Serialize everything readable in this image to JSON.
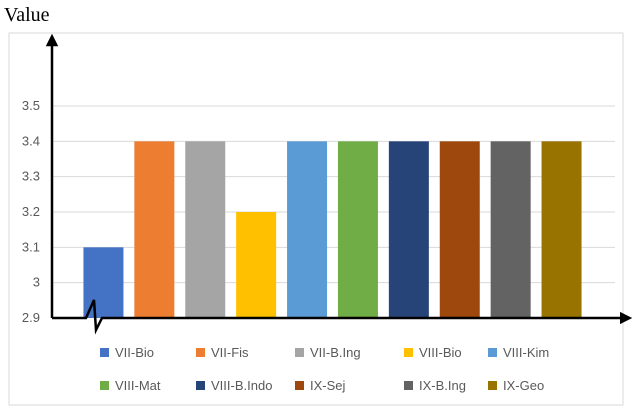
{
  "chart_data": {
    "type": "bar",
    "title": "",
    "ylabel": "Value",
    "xlabel": "",
    "ylim": [
      2.9,
      3.5
    ],
    "yticks": [
      "2.9",
      "3",
      "3.1",
      "3.2",
      "3.3",
      "3.4",
      "3.5"
    ],
    "grid": true,
    "legend_position": "bottom",
    "categories": [
      "VII-Bio",
      "VII-Fis",
      "VII-B.Ing",
      "VIII-Bio",
      "VIII-Kim",
      "VIII-Mat",
      "VIII-B.Indo",
      "IX-Sej",
      "IX-B.Ing",
      "IX-Geo"
    ],
    "values": [
      3.1,
      3.4,
      3.4,
      3.2,
      3.4,
      3.4,
      3.4,
      3.4,
      3.4,
      3.4
    ],
    "colors": [
      "#4472C4",
      "#ED7D31",
      "#A5A5A5",
      "#FFC000",
      "#5B9BD5",
      "#70AD47",
      "#264478",
      "#9E480E",
      "#636363",
      "#997300"
    ]
  }
}
